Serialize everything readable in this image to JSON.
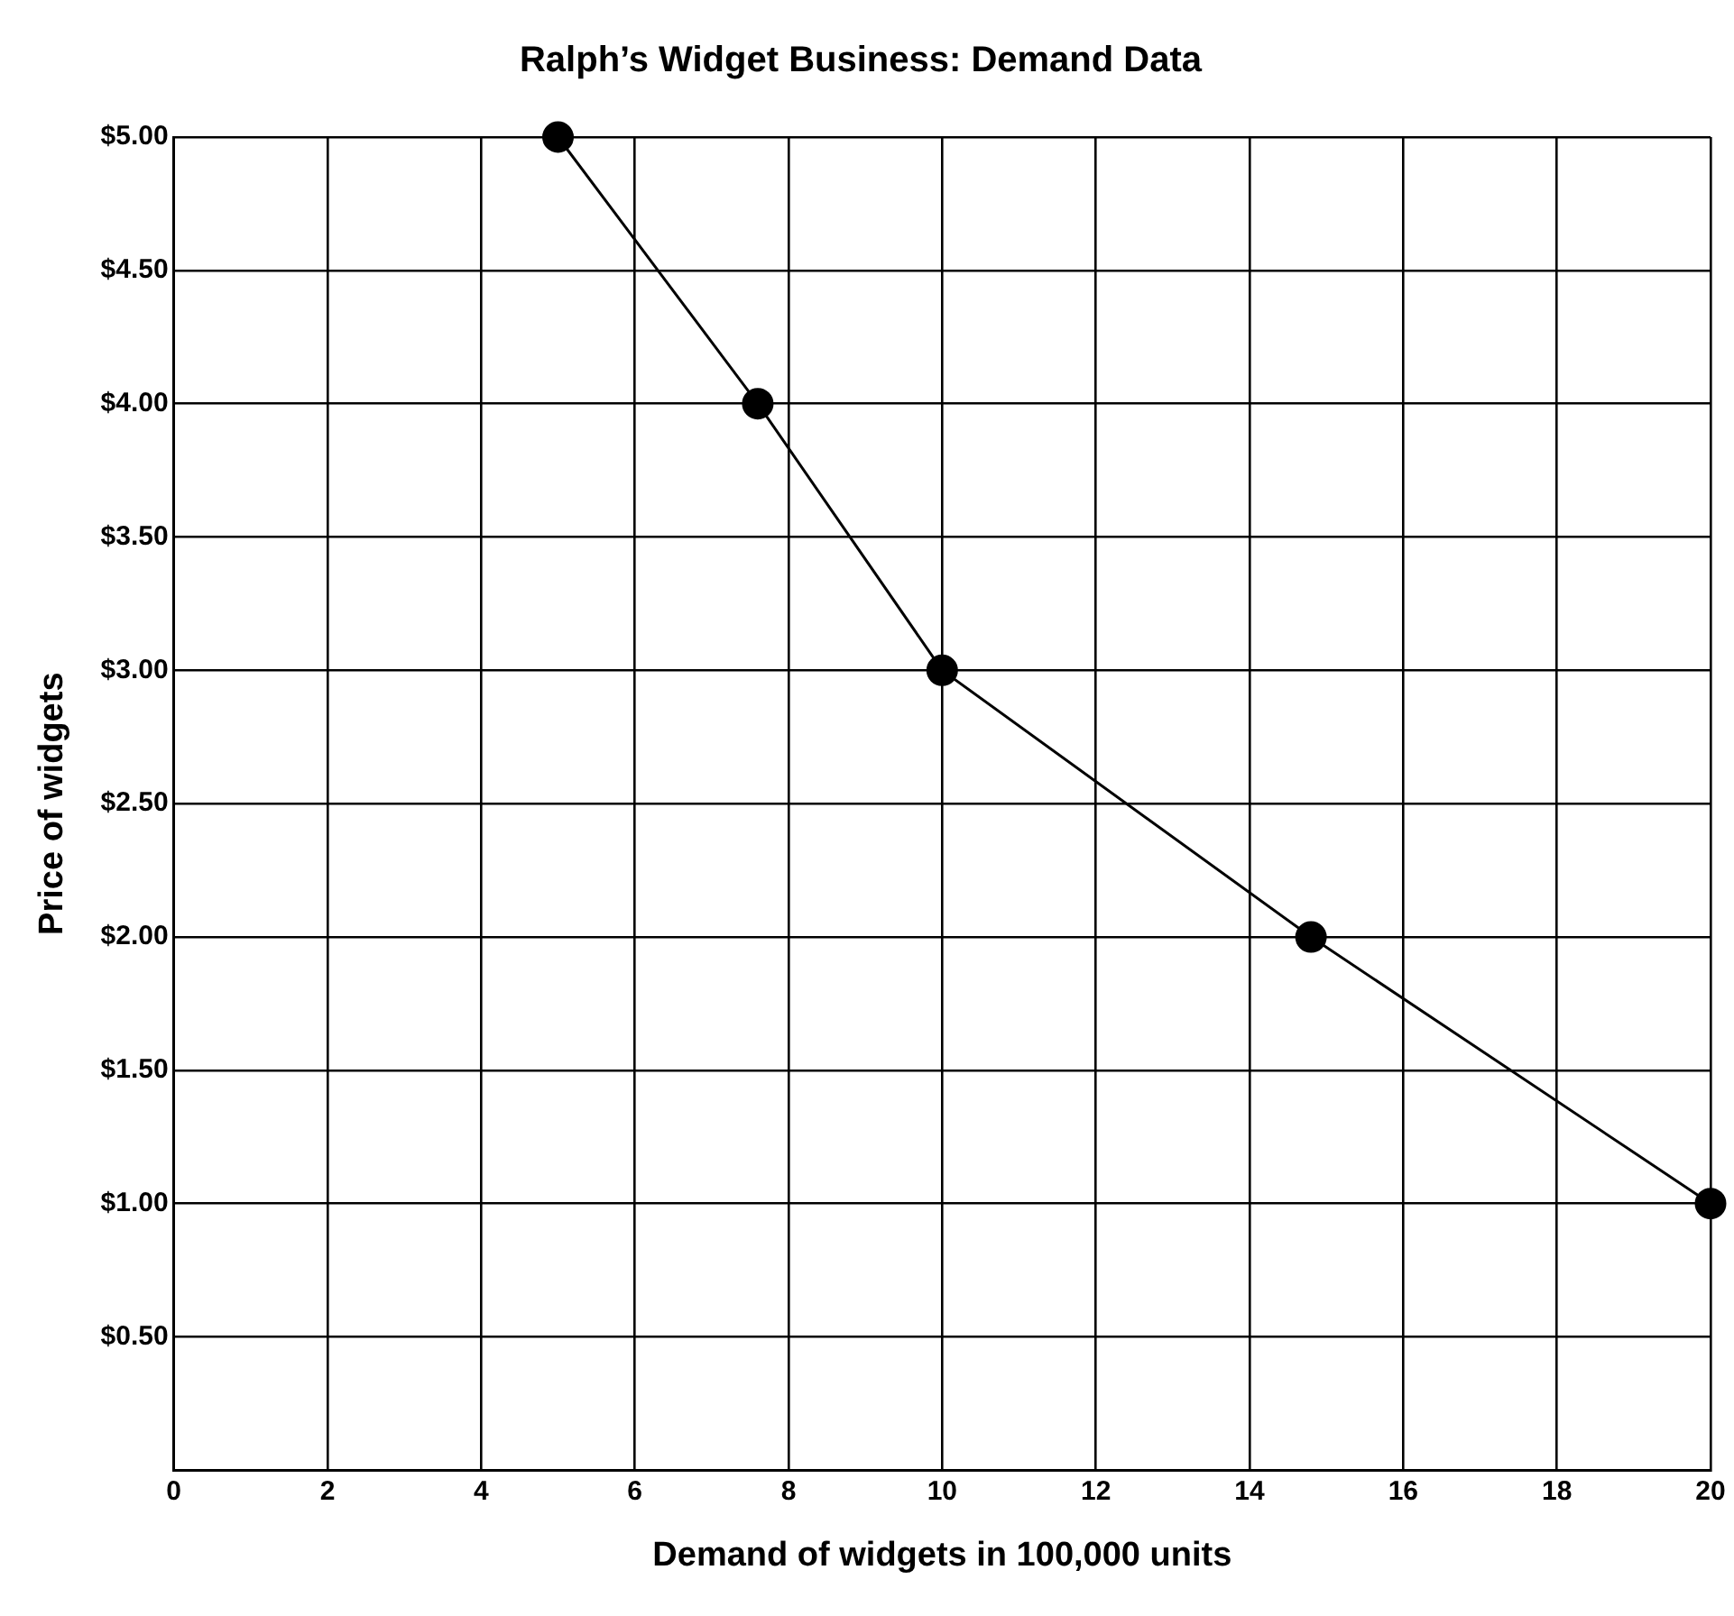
{
  "chart_data": {
    "type": "line",
    "title": "Ralph’s Widget Business: Demand Data",
    "xlabel": "Demand of widgets in 100,000 units",
    "ylabel": "Price of widgets",
    "series": [
      {
        "color": "#000000",
        "x": [
          5,
          7.6,
          10,
          14.8,
          20
        ],
        "values": [
          5,
          4,
          3,
          2,
          1
        ]
      }
    ],
    "xlim": [
      0,
      20
    ],
    "xticks": [
      0,
      2,
      4,
      6,
      8,
      10,
      12,
      14,
      16,
      18,
      20
    ],
    "ylim": [
      0,
      5
    ],
    "yticks": [
      {
        "value": 0,
        "label": null
      },
      {
        "value": 0.5,
        "label": "$0.50"
      },
      {
        "value": 1,
        "label": "$1.00"
      },
      {
        "value": 1.5,
        "label": "$1.50"
      },
      {
        "value": 2,
        "label": "$2.00"
      },
      {
        "value": 2.5,
        "label": "$2.50"
      },
      {
        "value": 3,
        "label": "$3.00"
      },
      {
        "value": 3.5,
        "label": "$3.50"
      },
      {
        "value": 4,
        "label": "$4.00"
      },
      {
        "value": 4.5,
        "label": "$4.50"
      },
      {
        "value": 5,
        "label": "$5.00"
      }
    ],
    "grid": true,
    "legend": false,
    "marker": "circle",
    "line_style": "solid"
  }
}
